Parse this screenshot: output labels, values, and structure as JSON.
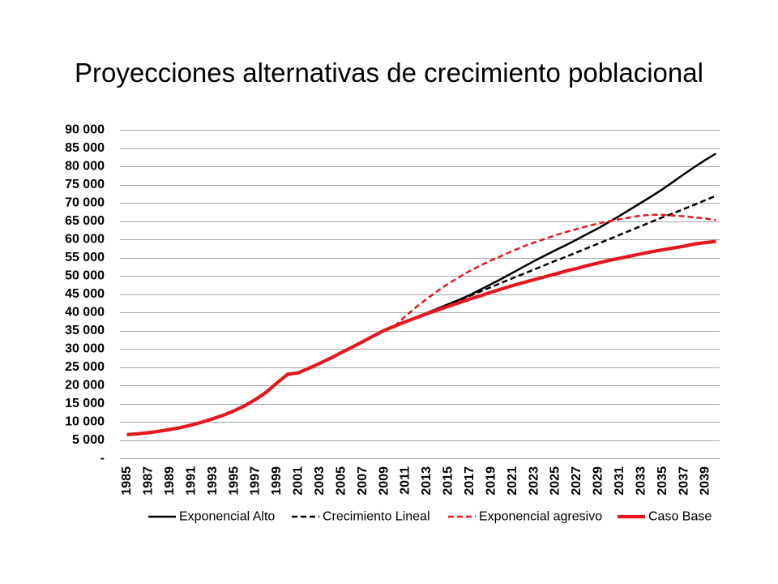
{
  "chart_data": {
    "type": "line",
    "title": "Proyecciones alternativas de crecimiento poblacional",
    "ylim": [
      0,
      90000
    ],
    "y_ticks": [
      0,
      5000,
      10000,
      15000,
      20000,
      25000,
      30000,
      35000,
      40000,
      45000,
      50000,
      55000,
      60000,
      65000,
      70000,
      75000,
      80000,
      85000,
      90000
    ],
    "y_tick_labels": [
      "-",
      "5 000",
      "10 000",
      "15 000",
      "20 000",
      "25 000",
      "30 000",
      "35 000",
      "40 000",
      "45 000",
      "50 000",
      "55 000",
      "60 000",
      "65 000",
      "70 000",
      "75 000",
      "80 000",
      "85 000",
      "90 000"
    ],
    "x": [
      1985,
      1986,
      1987,
      1988,
      1989,
      1990,
      1991,
      1992,
      1993,
      1994,
      1995,
      1996,
      1997,
      1998,
      1999,
      2000,
      2001,
      2002,
      2003,
      2004,
      2005,
      2006,
      2007,
      2008,
      2009,
      2010,
      2011,
      2012,
      2013,
      2014,
      2015,
      2016,
      2017,
      2018,
      2019,
      2020,
      2021,
      2022,
      2023,
      2024,
      2025,
      2026,
      2027,
      2028,
      2029,
      2030,
      2031,
      2032,
      2033,
      2034,
      2035,
      2036,
      2037,
      2038,
      2039,
      2040
    ],
    "x_tick_labels": [
      "1985",
      "1987",
      "1989",
      "1991",
      "1993",
      "1995",
      "1997",
      "1999",
      "2001",
      "2003",
      "2005",
      "2007",
      "2009",
      "2011",
      "2013",
      "2015",
      "2017",
      "2019",
      "2021",
      "2023",
      "2025",
      "2027",
      "2029",
      "2031",
      "2033",
      "2035",
      "2037",
      "2039"
    ],
    "grid": "horizontal",
    "legend_position": "bottom",
    "series": [
      {
        "name": "Exponencial Alto",
        "color": "#000000",
        "style": "solid",
        "values": [
          null,
          null,
          null,
          null,
          null,
          null,
          null,
          null,
          null,
          null,
          null,
          null,
          null,
          null,
          null,
          null,
          null,
          null,
          null,
          null,
          null,
          null,
          null,
          null,
          null,
          36200,
          37400,
          38600,
          39800,
          41000,
          42200,
          43400,
          44700,
          46200,
          47700,
          49200,
          50800,
          52400,
          54000,
          55500,
          57000,
          58400,
          59900,
          61500,
          63000,
          64700,
          66400,
          68200,
          70000,
          71800,
          73700,
          75700,
          77800,
          79800,
          81700,
          83500
        ]
      },
      {
        "name": "Crecimiento Lineal",
        "color": "#000000",
        "style": "dashed",
        "values": [
          null,
          null,
          null,
          null,
          null,
          null,
          null,
          null,
          null,
          null,
          null,
          null,
          null,
          null,
          null,
          null,
          null,
          null,
          null,
          null,
          null,
          null,
          null,
          null,
          null,
          36200,
          37400,
          38600,
          39800,
          41000,
          42200,
          43300,
          44500,
          45700,
          46900,
          48100,
          49300,
          50500,
          51700,
          52900,
          54100,
          55200,
          56400,
          57600,
          58800,
          60000,
          61200,
          62400,
          63600,
          64800,
          66000,
          67100,
          68300,
          69500,
          70700,
          71900
        ]
      },
      {
        "name": "Exponencial agresivo",
        "color": "#E3171D",
        "style": "dashed",
        "values": [
          null,
          null,
          null,
          null,
          null,
          null,
          null,
          null,
          null,
          null,
          null,
          null,
          null,
          null,
          null,
          null,
          null,
          null,
          null,
          null,
          null,
          null,
          null,
          null,
          null,
          36200,
          38900,
          41400,
          43700,
          45800,
          47800,
          49600,
          51300,
          52800,
          54200,
          55500,
          56800,
          58000,
          59100,
          60100,
          61100,
          62000,
          62800,
          63600,
          64300,
          64900,
          65500,
          66000,
          66500,
          66700,
          66700,
          66500,
          66300,
          66000,
          65700,
          65300
        ]
      },
      {
        "name": "Caso Base",
        "color": "#E3171D",
        "style": "solid",
        "values": [
          6500,
          6700,
          7000,
          7400,
          7900,
          8400,
          9100,
          9900,
          10800,
          11800,
          13000,
          14400,
          16100,
          18100,
          20600,
          23000,
          23400,
          24700,
          26000,
          27400,
          28900,
          30400,
          31900,
          33500,
          35000,
          36200,
          37400,
          38500,
          39600,
          40600,
          41600,
          42600,
          43600,
          44500,
          45500,
          46400,
          47300,
          48100,
          48900,
          49700,
          50500,
          51300,
          52000,
          52800,
          53500,
          54200,
          54800,
          55400,
          56000,
          56600,
          57100,
          57600,
          58100,
          58700,
          59100,
          59400
        ]
      }
    ]
  }
}
